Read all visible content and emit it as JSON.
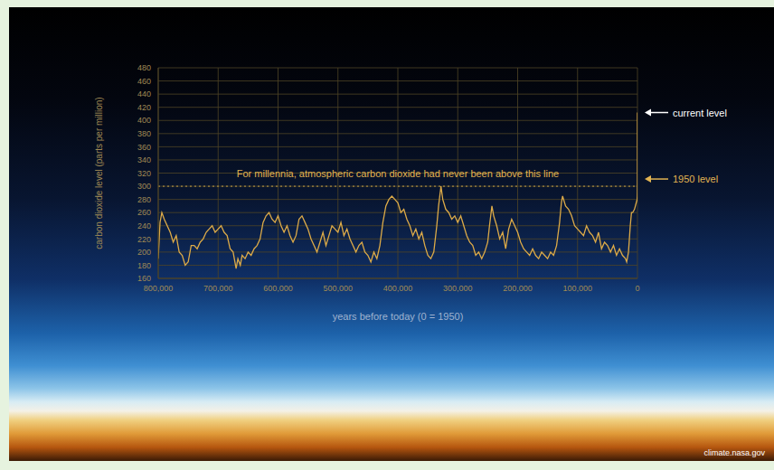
{
  "chart_data": {
    "type": "line",
    "color": "#dcaa48",
    "grid": true,
    "ylabel": "carbon dioxide level (parts per million)",
    "xlabel": "years before today (0 = 1950)",
    "x": [
      800000,
      797000,
      794000,
      790000,
      785000,
      780000,
      775000,
      770000,
      765000,
      760000,
      755000,
      750000,
      745000,
      740000,
      735000,
      730000,
      725000,
      720000,
      715000,
      710000,
      705000,
      700000,
      695000,
      690000,
      685000,
      680000,
      675000,
      670000,
      667000,
      663000,
      660000,
      655000,
      650000,
      645000,
      640000,
      635000,
      630000,
      625000,
      620000,
      615000,
      610000,
      605000,
      600000,
      595000,
      590000,
      585000,
      580000,
      575000,
      570000,
      565000,
      560000,
      555000,
      550000,
      545000,
      540000,
      535000,
      530000,
      525000,
      520000,
      515000,
      510000,
      505000,
      500000,
      495000,
      490000,
      485000,
      480000,
      475000,
      470000,
      465000,
      460000,
      455000,
      450000,
      445000,
      440000,
      435000,
      430000,
      425000,
      420000,
      415000,
      410000,
      405000,
      400000,
      395000,
      390000,
      385000,
      380000,
      375000,
      370000,
      365000,
      360000,
      355000,
      350000,
      345000,
      340000,
      335000,
      332000,
      328000,
      325000,
      320000,
      315000,
      310000,
      305000,
      300000,
      295000,
      290000,
      285000,
      280000,
      275000,
      270000,
      265000,
      260000,
      255000,
      250000,
      247000,
      243000,
      240000,
      235000,
      230000,
      225000,
      220000,
      215000,
      210000,
      205000,
      200000,
      195000,
      190000,
      185000,
      180000,
      175000,
      170000,
      165000,
      160000,
      155000,
      150000,
      145000,
      140000,
      135000,
      130000,
      127000,
      125000,
      120000,
      115000,
      110000,
      105000,
      100000,
      95000,
      90000,
      85000,
      80000,
      75000,
      70000,
      65000,
      60000,
      55000,
      50000,
      45000,
      40000,
      35000,
      30000,
      25000,
      20000,
      18000,
      15000,
      12000,
      10000,
      8000,
      5000,
      2000,
      500,
      200,
      100,
      50,
      0,
      0
    ],
    "values": [
      190,
      245,
      260,
      250,
      240,
      230,
      215,
      225,
      200,
      195,
      180,
      185,
      210,
      210,
      205,
      215,
      220,
      230,
      235,
      240,
      230,
      235,
      240,
      230,
      225,
      205,
      200,
      175,
      190,
      180,
      195,
      190,
      200,
      195,
      205,
      210,
      220,
      245,
      255,
      260,
      250,
      245,
      255,
      240,
      230,
      240,
      225,
      215,
      225,
      250,
      255,
      245,
      235,
      220,
      210,
      200,
      215,
      230,
      210,
      225,
      240,
      235,
      230,
      245,
      225,
      235,
      220,
      210,
      200,
      210,
      215,
      200,
      195,
      185,
      200,
      190,
      210,
      245,
      270,
      280,
      285,
      280,
      275,
      260,
      265,
      250,
      240,
      225,
      235,
      220,
      230,
      210,
      195,
      190,
      200,
      240,
      270,
      300,
      280,
      265,
      260,
      250,
      255,
      245,
      255,
      240,
      225,
      215,
      210,
      195,
      200,
      190,
      200,
      215,
      240,
      270,
      255,
      240,
      220,
      230,
      205,
      235,
      250,
      240,
      230,
      215,
      205,
      200,
      195,
      205,
      195,
      190,
      200,
      195,
      190,
      200,
      195,
      210,
      245,
      275,
      285,
      270,
      265,
      255,
      240,
      235,
      230,
      225,
      240,
      230,
      225,
      215,
      230,
      205,
      215,
      210,
      200,
      210,
      195,
      205,
      195,
      190,
      185,
      200,
      240,
      260,
      260,
      265,
      275,
      280,
      285,
      290,
      300,
      311,
      412
    ],
    "xlim": [
      800000,
      0
    ],
    "xticks": [
      {
        "value": 800000,
        "label": "800,000"
      },
      {
        "value": 700000,
        "label": "700,000"
      },
      {
        "value": 600000,
        "label": "600,000"
      },
      {
        "value": 500000,
        "label": "500,000"
      },
      {
        "value": 400000,
        "label": "400,000"
      },
      {
        "value": 300000,
        "label": "300,000"
      },
      {
        "value": 200000,
        "label": "200,000"
      },
      {
        "value": 100000,
        "label": "100,000"
      },
      0
    ],
    "ylim": [
      160,
      480
    ],
    "yticks": [
      160,
      180,
      200,
      220,
      240,
      260,
      280,
      300,
      320,
      340,
      360,
      380,
      400,
      420,
      440,
      460,
      480
    ],
    "reference_line": {
      "value": 300,
      "label": "For millennia, atmospheric carbon dioxide had never been above this line"
    },
    "annotations": [
      {
        "text": "current level",
        "x": 0,
        "y": 412
      },
      {
        "text": "1950 level",
        "x": 0,
        "y": 311
      }
    ],
    "source": "climate.nasa.gov"
  }
}
